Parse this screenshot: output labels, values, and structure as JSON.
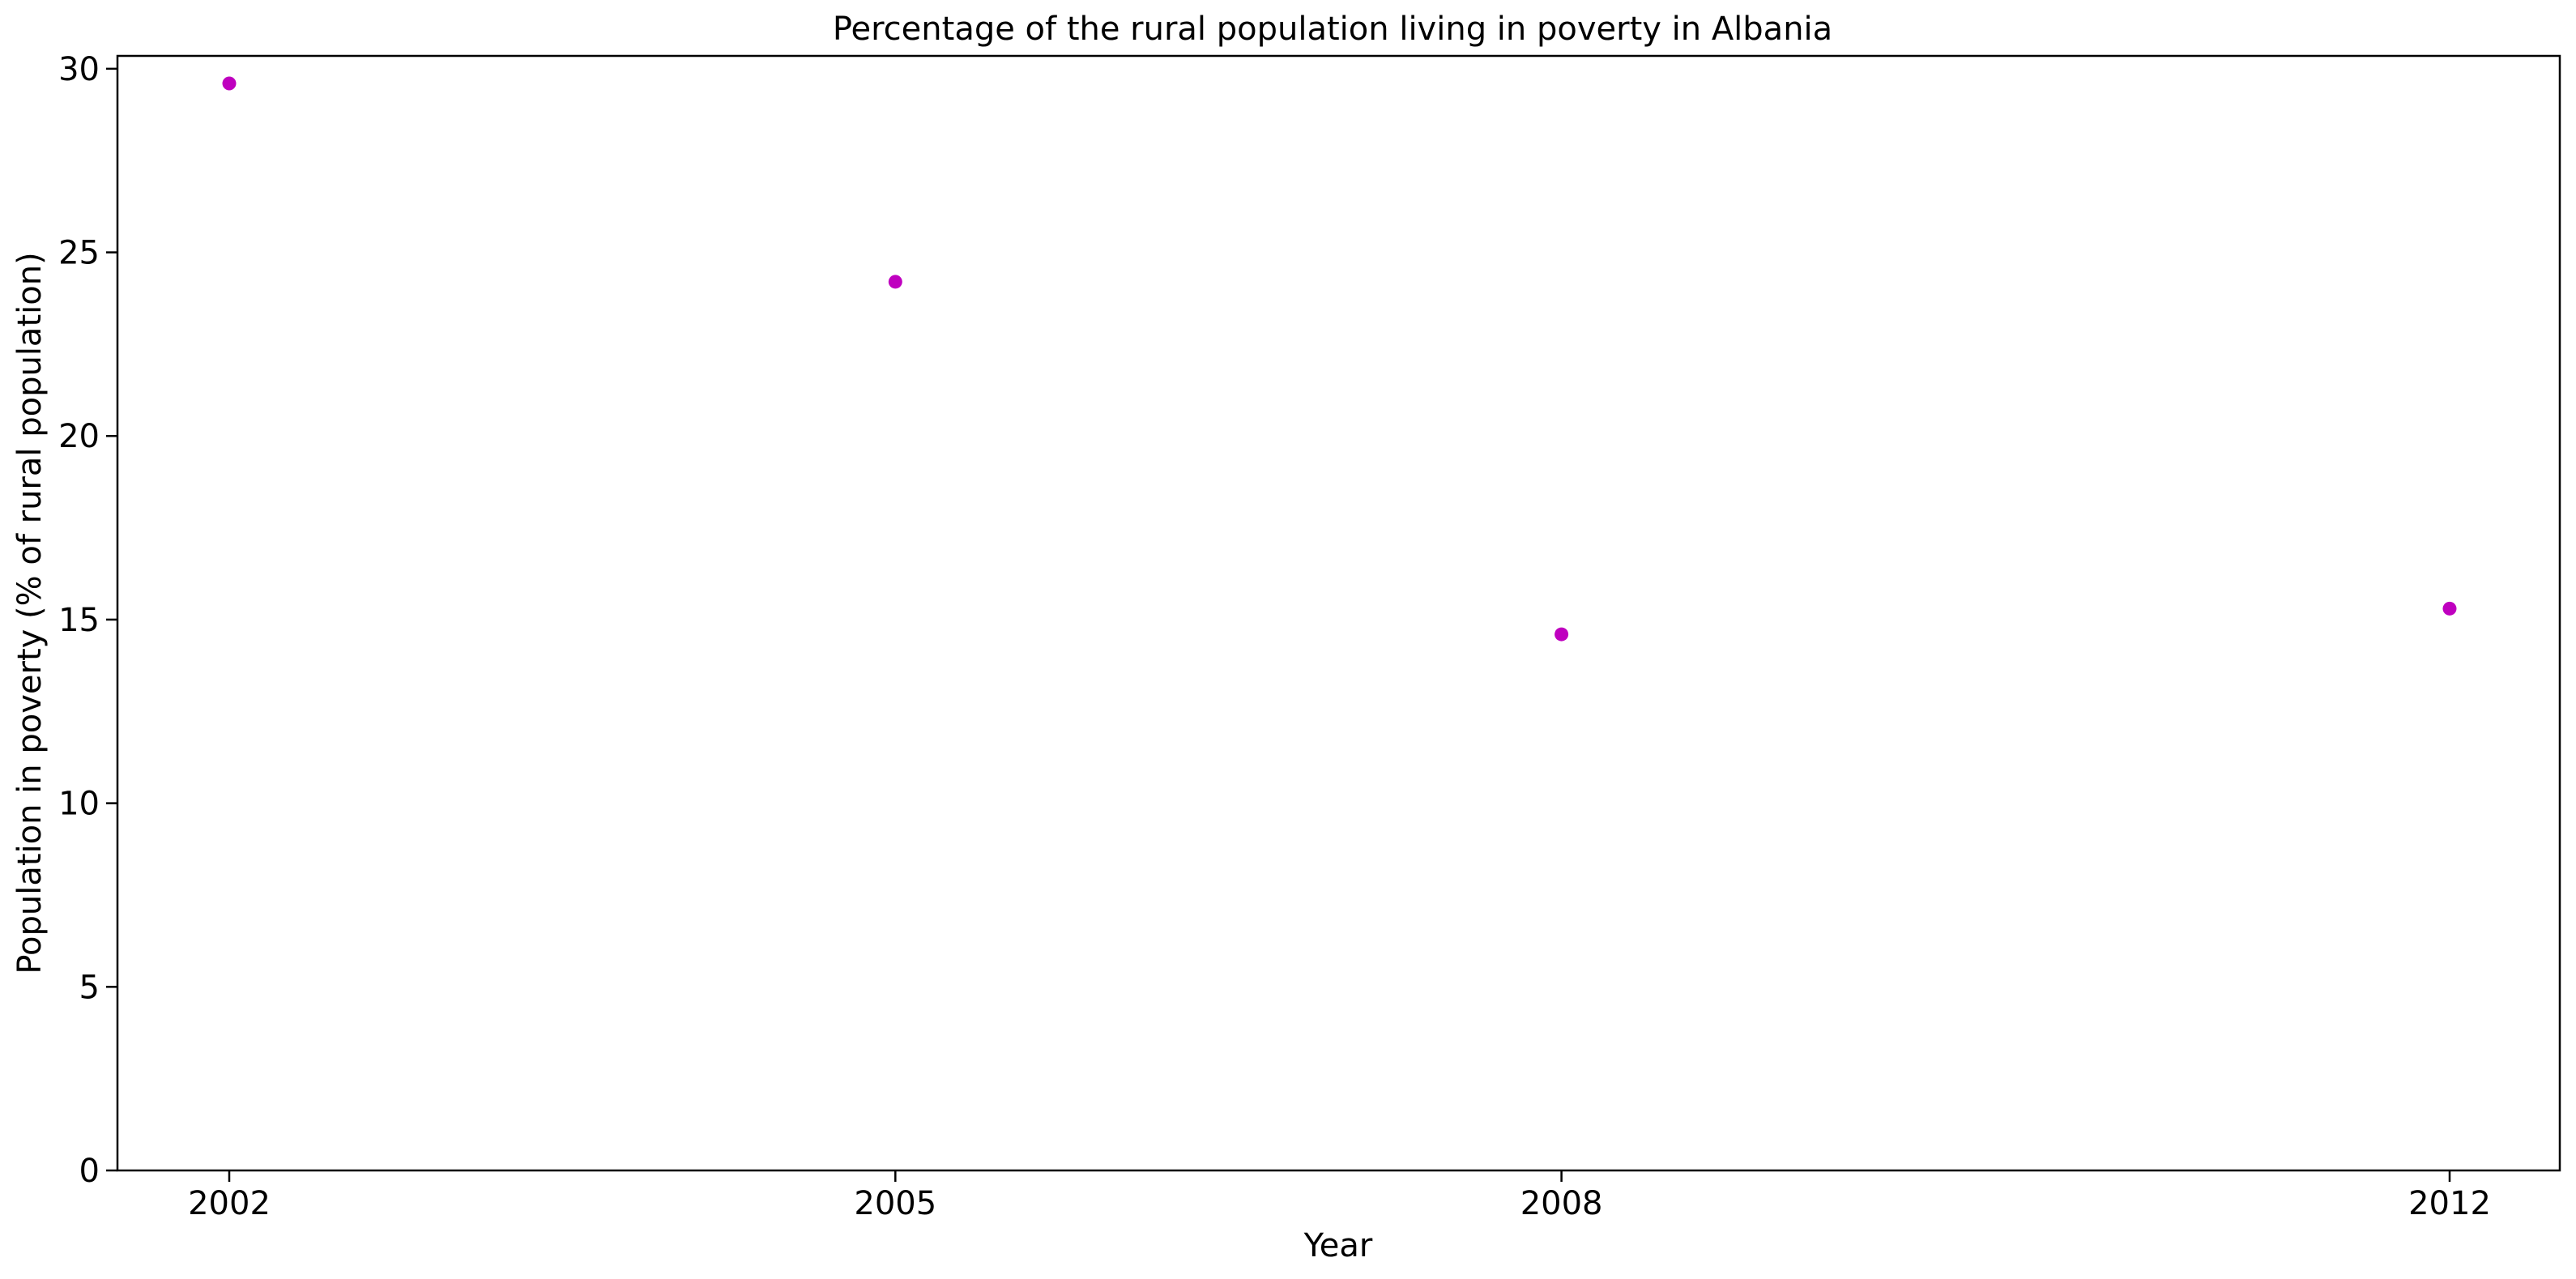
{
  "chart_data": {
    "type": "scatter",
    "title": "Percentage of the rural population living in poverty in Albania",
    "xlabel": "Year",
    "ylabel": "Population in poverty (% of rural population)",
    "categories": [
      "2002",
      "2005",
      "2008",
      "2012"
    ],
    "values": [
      29.6,
      24.2,
      14.6,
      15.3
    ],
    "ylim": [
      0,
      30.35
    ],
    "yticks": [
      "0",
      "5",
      "10",
      "15",
      "20",
      "25",
      "30"
    ],
    "grid": false,
    "legend": false,
    "marker_color": "#bf00bf"
  }
}
